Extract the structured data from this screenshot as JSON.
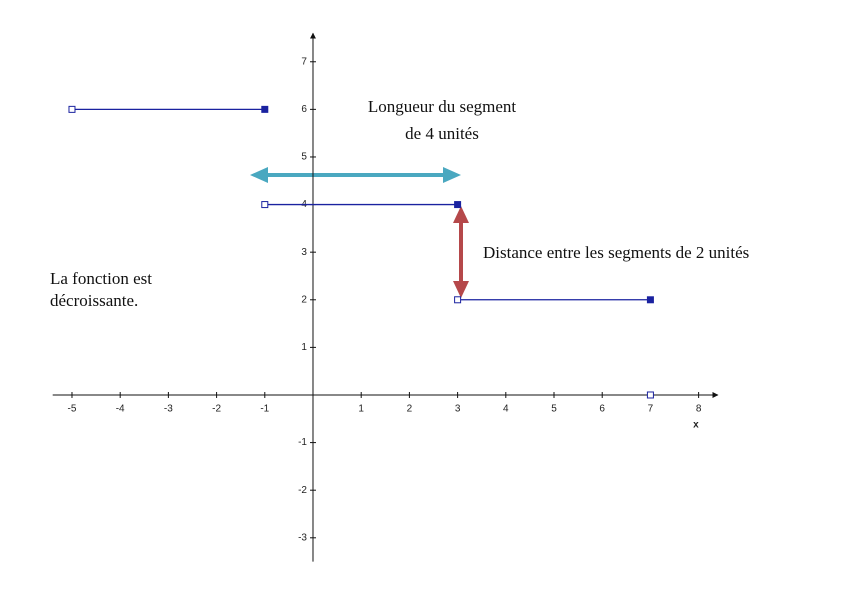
{
  "chart_data": {
    "type": "step",
    "x_label": "x",
    "xlim": [
      -5.4,
      8.4
    ],
    "ylim": [
      -3.5,
      7.6
    ],
    "xticks": [
      -5,
      -4,
      -3,
      -2,
      -1,
      1,
      2,
      3,
      4,
      5,
      6,
      7,
      8
    ],
    "yticks": [
      -3,
      -2,
      -1,
      1,
      2,
      3,
      4,
      5,
      6,
      7
    ],
    "color": "#1a22a0",
    "segments": [
      {
        "x": [
          -5,
          -1
        ],
        "values": [
          6,
          6
        ],
        "open": [
          true,
          false
        ]
      },
      {
        "x": [
          -1,
          3
        ],
        "values": [
          4,
          4
        ],
        "open": [
          true,
          false
        ]
      },
      {
        "x": [
          3,
          7
        ],
        "values": [
          2,
          2
        ],
        "open": [
          true,
          false
        ]
      },
      {
        "x": [
          7
        ],
        "values": [
          0
        ],
        "open": [
          true
        ]
      }
    ],
    "annotations": [
      "Longueur du segment",
      "de 4 unités",
      "Distance entre les segments de 2 unités",
      "La fonction est",
      "décroissante."
    ]
  }
}
